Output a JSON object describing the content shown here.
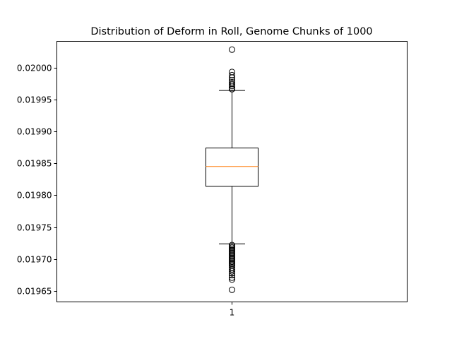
{
  "chart_data": {
    "type": "boxplot",
    "title": "Distribution of Deform in Roll, Genome Chunks of 1000",
    "xlabel": "",
    "ylabel": "",
    "categories": [
      "1"
    ],
    "ylim": [
      0.019633,
      0.020041
    ],
    "yticks": [
      0.01965,
      0.0197,
      0.01975,
      0.0198,
      0.01985,
      0.0199,
      0.01995,
      0.02
    ],
    "ytick_labels": [
      "0.01965",
      "0.01970",
      "0.01975",
      "0.01980",
      "0.01985",
      "0.01990",
      "0.01995",
      "0.02000"
    ],
    "grid": false,
    "legend": "none",
    "boxes": [
      {
        "name": "1",
        "whisker_low": 0.019724,
        "q1": 0.019814,
        "median": 0.019845,
        "q3": 0.019874,
        "whisker_high": 0.019964,
        "outliers": [
          0.020028,
          0.019993,
          0.019988,
          0.019984,
          0.01998,
          0.019977,
          0.019974,
          0.019971,
          0.019968,
          0.019966,
          0.019722,
          0.01972,
          0.019718,
          0.019716,
          0.019714,
          0.019712,
          0.01971,
          0.019708,
          0.019706,
          0.019704,
          0.019702,
          0.0197,
          0.019698,
          0.019696,
          0.019694,
          0.019692,
          0.01969,
          0.019687,
          0.019684,
          0.019681,
          0.019678,
          0.019675,
          0.019671,
          0.019668,
          0.019652
        ]
      }
    ],
    "colors": {
      "box": "#000000",
      "median": "#ff7f0e",
      "outlier_edge": "#000000",
      "background": "#ffffff"
    }
  }
}
